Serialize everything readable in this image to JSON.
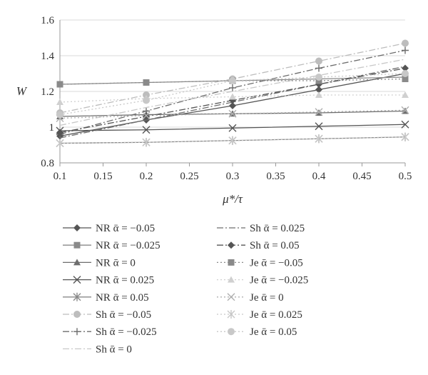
{
  "chart_data": {
    "type": "line",
    "title": "",
    "xlabel": "μ*/τ",
    "ylabel": "W",
    "x": [
      0.1,
      0.2,
      0.3,
      0.4,
      0.5
    ],
    "xlim": [
      0.1,
      0.5
    ],
    "ylim": [
      0.8,
      1.6
    ],
    "x_ticks": [
      "0.1",
      "0.15",
      "0.2",
      "0.25",
      "0.3",
      "0.35",
      "0.4",
      "0.45",
      "0.5"
    ],
    "y_ticks": [
      "0.8",
      "1",
      "1.2",
      "1.4",
      "1.6"
    ],
    "grid": "horizontal",
    "legend_position": "bottom",
    "series": [
      {
        "name": "NR ᾱ = −0.05",
        "values": [
          0.95,
          1.04,
          1.12,
          1.21,
          1.3
        ],
        "marker": "diamond",
        "color": "#555555",
        "dash": "solid"
      },
      {
        "name": "NR ᾱ = −0.025",
        "values": [
          1.24,
          1.25,
          1.26,
          1.27,
          1.28
        ],
        "marker": "square",
        "color": "#8a8a8a",
        "dash": "solid"
      },
      {
        "name": "NR ᾱ = 0",
        "values": [
          1.06,
          1.07,
          1.075,
          1.08,
          1.09
        ],
        "marker": "triangle",
        "color": "#6e6e6e",
        "dash": "solid"
      },
      {
        "name": "NR ᾱ = 0.025",
        "values": [
          0.98,
          0.985,
          0.995,
          1.005,
          1.015
        ],
        "marker": "x",
        "color": "#555555",
        "dash": "solid"
      },
      {
        "name": "NR ᾱ = 0.05",
        "values": [
          0.91,
          0.915,
          0.925,
          0.935,
          0.945
        ],
        "marker": "star",
        "color": "#8a8a8a",
        "dash": "solid"
      },
      {
        "name": "Sh ᾱ = −0.05",
        "values": [
          1.08,
          1.18,
          1.27,
          1.37,
          1.47
        ],
        "marker": "circle",
        "color": "#bdbdbd",
        "dash": "dashdot"
      },
      {
        "name": "Sh ᾱ = −0.025",
        "values": [
          0.96,
          1.09,
          1.22,
          1.33,
          1.43
        ],
        "marker": "plus",
        "color": "#6e6e6e",
        "dash": "dashdot"
      },
      {
        "name": "Sh ᾱ = 0",
        "values": [
          1.01,
          1.11,
          1.2,
          1.29,
          1.38
        ],
        "marker": "none",
        "color": "#c8c8c8",
        "dash": "dashdot"
      },
      {
        "name": "Sh ᾱ = 0.025",
        "values": [
          0.94,
          1.04,
          1.14,
          1.24,
          1.34
        ],
        "marker": "none",
        "color": "#6e6e6e",
        "dash": "dashdot"
      },
      {
        "name": "Sh ᾱ = 0.05",
        "values": [
          0.97,
          1.06,
          1.15,
          1.24,
          1.33
        ],
        "marker": "diamond",
        "color": "#555555",
        "dash": "dashdot"
      },
      {
        "name": "Je ᾱ = −0.05",
        "values": [
          1.24,
          1.25,
          1.26,
          1.26,
          1.27
        ],
        "marker": "square",
        "color": "#8a8a8a",
        "dash": "dot"
      },
      {
        "name": "Je ᾱ = −0.025",
        "values": [
          1.14,
          1.16,
          1.17,
          1.18,
          1.18
        ],
        "marker": "triangle",
        "color": "#d0d0d0",
        "dash": "dot"
      },
      {
        "name": "Je ᾱ = 0",
        "values": [
          1.05,
          1.065,
          1.075,
          1.085,
          1.095
        ],
        "marker": "x",
        "color": "#b0b0b0",
        "dash": "dot"
      },
      {
        "name": "Je ᾱ = 0.025",
        "values": [
          0.91,
          0.915,
          0.925,
          0.935,
          0.945
        ],
        "marker": "star",
        "color": "#c8c8c8",
        "dash": "dot"
      },
      {
        "name": "Je ᾱ = 0.05",
        "values": [
          1.07,
          1.15,
          1.26,
          1.28,
          1.3
        ],
        "marker": "circle",
        "color": "#c8c8c8",
        "dash": "dot"
      }
    ]
  }
}
